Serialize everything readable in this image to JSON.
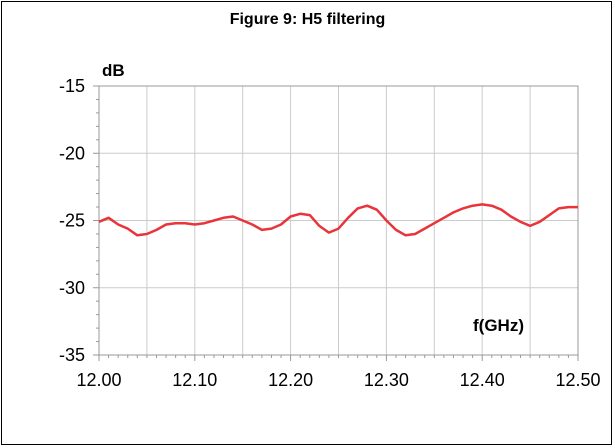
{
  "chart_data": {
    "type": "line",
    "title": "Figure 9: H5 filtering",
    "xlabel": "f(GHz)",
    "ylabel": "dB",
    "xlim": [
      12.0,
      12.5
    ],
    "ylim": [
      -35,
      -15
    ],
    "xticks": [
      "12.00",
      "12.10",
      "12.20",
      "12.30",
      "12.40",
      "12.50"
    ],
    "yticks": [
      "-15",
      "-20",
      "-25",
      "-30",
      "-35"
    ],
    "grid": true,
    "series": [
      {
        "color": "#e8343a",
        "x": [
          12.0,
          12.01,
          12.02,
          12.03,
          12.04,
          12.05,
          12.06,
          12.07,
          12.08,
          12.09,
          12.1,
          12.11,
          12.12,
          12.13,
          12.14,
          12.15,
          12.16,
          12.17,
          12.18,
          12.19,
          12.2,
          12.21,
          12.22,
          12.23,
          12.24,
          12.25,
          12.26,
          12.27,
          12.28,
          12.29,
          12.3,
          12.31,
          12.32,
          12.33,
          12.34,
          12.35,
          12.36,
          12.37,
          12.38,
          12.39,
          12.4,
          12.41,
          12.42,
          12.43,
          12.44,
          12.45,
          12.46,
          12.47,
          12.48,
          12.49,
          12.5
        ],
        "y": [
          -25.1,
          -24.8,
          -25.3,
          -25.6,
          -26.1,
          -26.0,
          -25.7,
          -25.3,
          -25.2,
          -25.2,
          -25.3,
          -25.2,
          -25.0,
          -24.8,
          -24.7,
          -25.0,
          -25.3,
          -25.7,
          -25.6,
          -25.3,
          -24.7,
          -24.5,
          -24.6,
          -25.4,
          -25.9,
          -25.6,
          -24.8,
          -24.1,
          -23.9,
          -24.2,
          -25.0,
          -25.7,
          -26.1,
          -26.0,
          -25.6,
          -25.2,
          -24.8,
          -24.4,
          -24.1,
          -23.9,
          -23.8,
          -23.9,
          -24.2,
          -24.7,
          -25.1,
          -25.4,
          -25.1,
          -24.6,
          -24.1,
          -24.0,
          -24.0
        ]
      }
    ]
  }
}
